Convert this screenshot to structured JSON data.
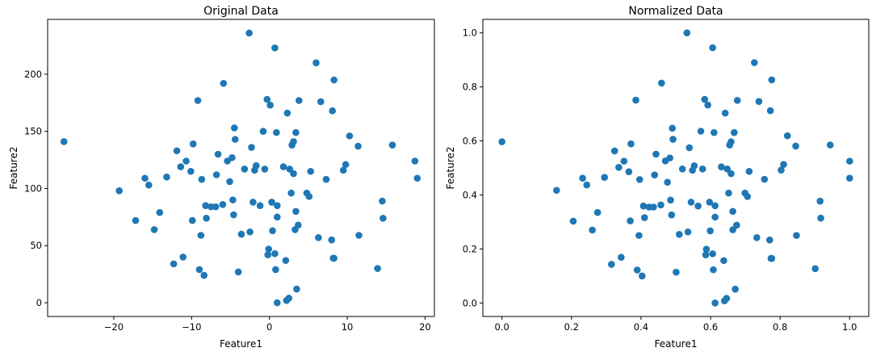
{
  "chart_data": [
    {
      "type": "scatter",
      "title": "Original Data",
      "xlabel": "Feature1",
      "ylabel": "Feature2",
      "xlim": [
        -28.5,
        21.2
      ],
      "ylim": [
        -12,
        248
      ],
      "xticks": [
        -20,
        -10,
        0,
        10,
        20
      ],
      "yticks": [
        0,
        50,
        100,
        150,
        200
      ],
      "xtick_labels": [
        "−20",
        "−10",
        "0",
        "10",
        "20"
      ],
      "ytick_labels": [
        "0",
        "50",
        "100",
        "150",
        "200"
      ],
      "color": "#1f77b4",
      "grid": false,
      "points": [
        [
          -26.4,
          141
        ],
        [
          -19.3,
          98
        ],
        [
          -17.2,
          72
        ],
        [
          -16,
          109
        ],
        [
          -15.5,
          103
        ],
        [
          -14.8,
          64
        ],
        [
          -14.1,
          79
        ],
        [
          -13.2,
          110
        ],
        [
          -12.3,
          34
        ],
        [
          -11.9,
          133
        ],
        [
          -11.4,
          119
        ],
        [
          -11.1,
          40
        ],
        [
          -10.7,
          124
        ],
        [
          -10.1,
          115
        ],
        [
          -9.9,
          72
        ],
        [
          -9.8,
          139
        ],
        [
          -9.2,
          177
        ],
        [
          -9,
          29
        ],
        [
          -8.8,
          59
        ],
        [
          -8.7,
          108
        ],
        [
          -8.4,
          24
        ],
        [
          -8.2,
          85
        ],
        [
          -8.1,
          74
        ],
        [
          -7.5,
          84
        ],
        [
          -6.9,
          84
        ],
        [
          -6.8,
          112
        ],
        [
          -6.6,
          130
        ],
        [
          -6,
          86
        ],
        [
          -5.9,
          192
        ],
        [
          -5.4,
          124
        ],
        [
          -5.1,
          106
        ],
        [
          -4.8,
          127
        ],
        [
          -4.7,
          90
        ],
        [
          -4.6,
          77
        ],
        [
          -4.5,
          153
        ],
        [
          -4.4,
          143
        ],
        [
          -4,
          27
        ],
        [
          -3.6,
          60
        ],
        [
          -3.2,
          117
        ],
        [
          -2.6,
          236
        ],
        [
          -2.5,
          62
        ],
        [
          -2.3,
          136
        ],
        [
          -2.1,
          88
        ],
        [
          -1.9,
          116
        ],
        [
          -1.7,
          120
        ],
        [
          -1.2,
          85
        ],
        [
          -0.8,
          150
        ],
        [
          -0.6,
          117
        ],
        [
          -0.3,
          178
        ],
        [
          -0.2,
          42
        ],
        [
          -0.1,
          47
        ],
        [
          0.1,
          173
        ],
        [
          0.3,
          88
        ],
        [
          0.4,
          63
        ],
        [
          0.7,
          223
        ],
        [
          0.7,
          43
        ],
        [
          0.8,
          29
        ],
        [
          0.9,
          149
        ],
        [
          1,
          75
        ],
        [
          1,
          0
        ],
        [
          1,
          85
        ],
        [
          1.8,
          119
        ],
        [
          2.1,
          37
        ],
        [
          2.3,
          166
        ],
        [
          2.2,
          2
        ],
        [
          2.5,
          4
        ],
        [
          2.6,
          117
        ],
        [
          2.8,
          96
        ],
        [
          2.9,
          138
        ],
        [
          3.1,
          141
        ],
        [
          3.1,
          113
        ],
        [
          3.3,
          64
        ],
        [
          3.4,
          80
        ],
        [
          3.4,
          149
        ],
        [
          3.5,
          12
        ],
        [
          3.7,
          68
        ],
        [
          3.8,
          177
        ],
        [
          4.8,
          96
        ],
        [
          5.1,
          93
        ],
        [
          5.3,
          115
        ],
        [
          6,
          210
        ],
        [
          6.3,
          57
        ],
        [
          6.6,
          176
        ],
        [
          7.3,
          108
        ],
        [
          8,
          55
        ],
        [
          8.1,
          168
        ],
        [
          8.2,
          39
        ],
        [
          8.3,
          39
        ],
        [
          8.3,
          195
        ],
        [
          9.5,
          116
        ],
        [
          9.8,
          121
        ],
        [
          10.3,
          146
        ],
        [
          11.4,
          137
        ],
        [
          11.5,
          59
        ],
        [
          13.9,
          30
        ],
        [
          14.5,
          89
        ],
        [
          14.6,
          74
        ],
        [
          15.8,
          138
        ],
        [
          18.7,
          124
        ],
        [
          19,
          109
        ]
      ]
    },
    {
      "type": "scatter",
      "title": "Normalized Data",
      "xlabel": "Feature1",
      "ylabel": "Feature2",
      "xlim": [
        -0.055,
        1.055
      ],
      "ylim": [
        -0.05,
        1.05
      ],
      "xticks": [
        0,
        0.2,
        0.4,
        0.6,
        0.8,
        1.0
      ],
      "yticks": [
        0,
        0.2,
        0.4,
        0.6,
        0.8,
        1.0
      ],
      "xtick_labels": [
        "0.0",
        "0.2",
        "0.4",
        "0.6",
        "0.8",
        "1.0"
      ],
      "ytick_labels": [
        "0.0",
        "0.2",
        "0.4",
        "0.6",
        "0.8",
        "1.0"
      ],
      "color": "#1f77b4",
      "grid": false,
      "points": [
        [
          0,
          0.597
        ],
        [
          0.157,
          0.417
        ],
        [
          0.205,
          0.303
        ],
        [
          0.232,
          0.462
        ],
        [
          0.244,
          0.437
        ],
        [
          0.26,
          0.27
        ],
        [
          0.275,
          0.335
        ],
        [
          0.295,
          0.465
        ],
        [
          0.315,
          0.143
        ],
        [
          0.324,
          0.563
        ],
        [
          0.336,
          0.502
        ],
        [
          0.343,
          0.169
        ],
        [
          0.351,
          0.525
        ],
        [
          0.365,
          0.486
        ],
        [
          0.369,
          0.304
        ],
        [
          0.371,
          0.589
        ],
        [
          0.385,
          0.751
        ],
        [
          0.389,
          0.122
        ],
        [
          0.394,
          0.25
        ],
        [
          0.396,
          0.457
        ],
        [
          0.403,
          0.1
        ],
        [
          0.407,
          0.359
        ],
        [
          0.41,
          0.316
        ],
        [
          0.423,
          0.355
        ],
        [
          0.436,
          0.355
        ],
        [
          0.439,
          0.474
        ],
        [
          0.443,
          0.551
        ],
        [
          0.457,
          0.363
        ],
        [
          0.459,
          0.814
        ],
        [
          0.47,
          0.526
        ],
        [
          0.476,
          0.447
        ],
        [
          0.483,
          0.537
        ],
        [
          0.485,
          0.381
        ],
        [
          0.488,
          0.326
        ],
        [
          0.49,
          0.647
        ],
        [
          0.492,
          0.606
        ],
        [
          0.501,
          0.114
        ],
        [
          0.51,
          0.254
        ],
        [
          0.519,
          0.496
        ],
        [
          0.532,
          1.0
        ],
        [
          0.535,
          0.263
        ],
        [
          0.539,
          0.575
        ],
        [
          0.544,
          0.373
        ],
        [
          0.548,
          0.491
        ],
        [
          0.553,
          0.508
        ],
        [
          0.564,
          0.359
        ],
        [
          0.572,
          0.636
        ],
        [
          0.577,
          0.496
        ],
        [
          0.583,
          0.754
        ],
        [
          0.586,
          0.178
        ],
        [
          0.588,
          0.199
        ],
        [
          0.592,
          0.733
        ],
        [
          0.597,
          0.373
        ],
        [
          0.599,
          0.267
        ],
        [
          0.606,
          0.945
        ],
        [
          0.606,
          0.182
        ],
        [
          0.608,
          0.123
        ],
        [
          0.61,
          0.631
        ],
        [
          0.613,
          0.318
        ],
        [
          0.613,
          0
        ],
        [
          0.613,
          0.36
        ],
        [
          0.631,
          0.504
        ],
        [
          0.638,
          0.157
        ],
        [
          0.642,
          0.703
        ],
        [
          0.64,
          0.008
        ],
        [
          0.646,
          0.017
        ],
        [
          0.648,
          0.496
        ],
        [
          0.652,
          0.407
        ],
        [
          0.655,
          0.585
        ],
        [
          0.659,
          0.597
        ],
        [
          0.659,
          0.479
        ],
        [
          0.664,
          0.271
        ],
        [
          0.664,
          0.339
        ],
        [
          0.668,
          0.631
        ],
        [
          0.671,
          0.051
        ],
        [
          0.675,
          0.288
        ],
        [
          0.677,
          0.75
        ],
        [
          0.699,
          0.407
        ],
        [
          0.706,
          0.394
        ],
        [
          0.711,
          0.487
        ],
        [
          0.726,
          0.89
        ],
        [
          0.733,
          0.242
        ],
        [
          0.739,
          0.746
        ],
        [
          0.755,
          0.458
        ],
        [
          0.77,
          0.233
        ],
        [
          0.772,
          0.712
        ],
        [
          0.774,
          0.165
        ],
        [
          0.776,
          0.165
        ],
        [
          0.776,
          0.826
        ],
        [
          0.803,
          0.492
        ],
        [
          0.81,
          0.513
        ],
        [
          0.821,
          0.619
        ],
        [
          0.845,
          0.581
        ],
        [
          0.847,
          0.25
        ],
        [
          0.901,
          0.127
        ],
        [
          0.915,
          0.377
        ],
        [
          0.917,
          0.314
        ],
        [
          0.944,
          0.585
        ],
        [
          1.0,
          0.525
        ],
        [
          1.0,
          0.462
        ]
      ]
    }
  ]
}
